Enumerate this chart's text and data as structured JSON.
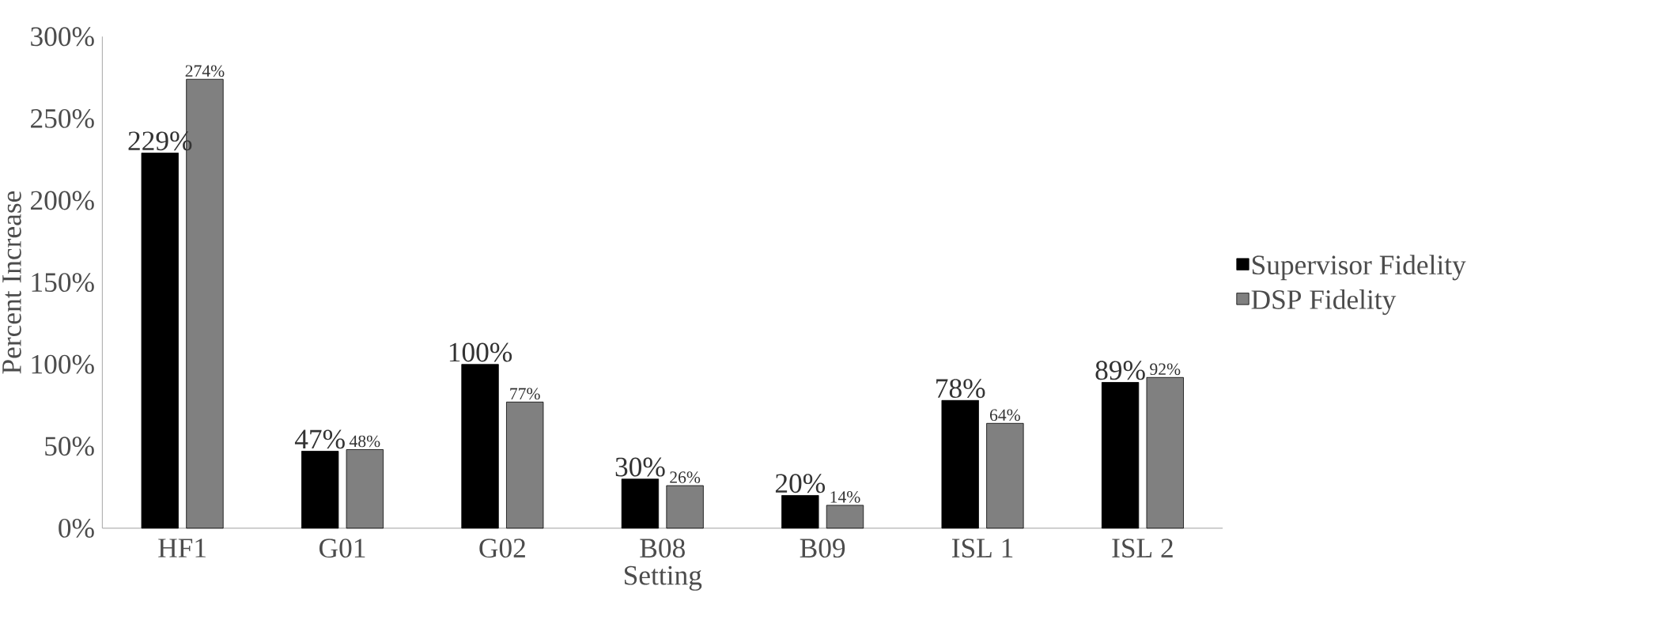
{
  "chart_data": {
    "type": "bar",
    "xlabel": "Setting",
    "ylabel": "Percent Increase",
    "categories": [
      "HF1",
      "G01",
      "G02",
      "B08",
      "B09",
      "ISL 1",
      "ISL 2"
    ],
    "series": [
      {
        "name": "Supervisor Fidelity",
        "color": "#000000",
        "values": [
          229,
          47,
          100,
          30,
          20,
          78,
          89
        ],
        "value_labels": [
          "229%",
          "47%",
          "100%",
          "30%",
          "20%",
          "78%",
          "89%"
        ]
      },
      {
        "name": "DSP Fidelity",
        "color": "#808080",
        "values": [
          274,
          48,
          77,
          26,
          14,
          64,
          92
        ],
        "value_labels": [
          "274%",
          "48%",
          "77%",
          "26%",
          "14%",
          "64%",
          "92%"
        ]
      }
    ],
    "ylim": [
      0,
      300
    ],
    "yticks": [
      {
        "value": 0,
        "label": "0%"
      },
      {
        "value": 50,
        "label": "50%"
      },
      {
        "value": 100,
        "label": "100%"
      },
      {
        "value": 150,
        "label": "150%"
      },
      {
        "value": 200,
        "label": "200%"
      },
      {
        "value": 250,
        "label": "250%"
      },
      {
        "value": 300,
        "label": "300%"
      }
    ],
    "grid": false,
    "legend": "right"
  }
}
